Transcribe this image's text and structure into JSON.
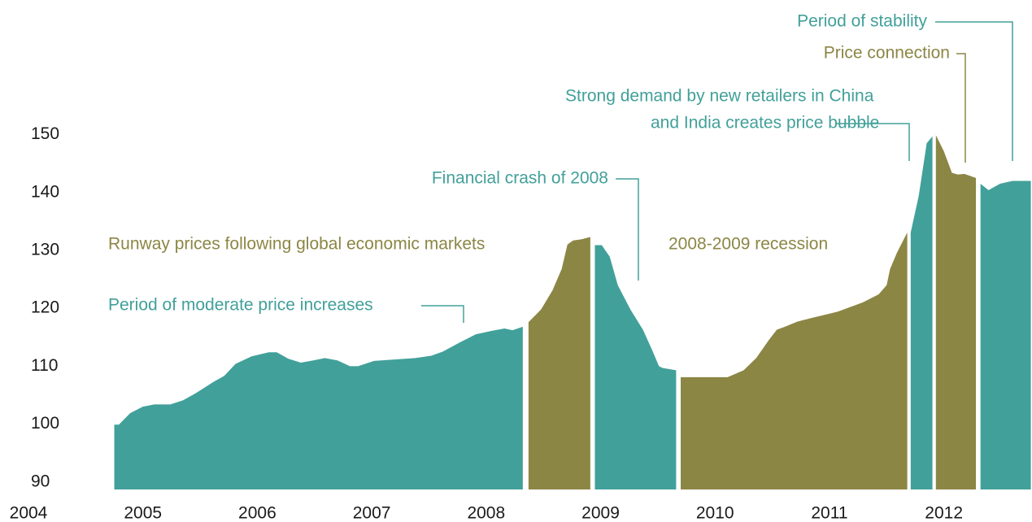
{
  "chart_data": {
    "type": "area",
    "xlim": [
      2004,
      2012.77
    ],
    "ylim": [
      88.7,
      150
    ],
    "xticks": [
      2004,
      2005,
      2006,
      2007,
      2008,
      2009,
      2010,
      2011,
      2012
    ],
    "yticks": [
      90,
      100,
      110,
      120,
      130,
      140,
      150
    ],
    "series": [
      {
        "color": "#42a09a",
        "x": [
          2004.75,
          2004.79,
          2004.89,
          2005.0,
          2005.1,
          2005.24,
          2005.35,
          2005.46,
          2005.61,
          2005.71,
          2005.81,
          2005.95,
          2006.1,
          2006.17,
          2006.27,
          2006.38,
          2006.49,
          2006.59,
          2006.7,
          2006.81,
          2006.88,
          2007.02,
          2007.16,
          2007.38,
          2007.52,
          2007.62,
          2007.77,
          2007.91,
          2008.05,
          2008.16,
          2008.23,
          2008.32
        ],
        "values": [
          99.9,
          99.9,
          101.9,
          103.0,
          103.4,
          103.4,
          104.1,
          105.3,
          107.2,
          108.3,
          110.4,
          111.7,
          112.4,
          112.4,
          111.3,
          110.6,
          111.0,
          111.4,
          111.0,
          110.0,
          110.0,
          110.9,
          111.1,
          111.4,
          111.8,
          112.5,
          114.1,
          115.5,
          116.1,
          116.5,
          116.2,
          116.8
        ]
      },
      {
        "color": "#8c8645",
        "x": [
          2008.37,
          2008.48,
          2008.58,
          2008.66,
          2008.71,
          2008.76,
          2008.83,
          2008.91
        ],
        "values": [
          117.6,
          119.8,
          123.1,
          126.8,
          131.0,
          131.7,
          131.9,
          132.3
        ]
      },
      {
        "color": "#42a09a",
        "x": [
          2008.95,
          2009.01,
          2009.08,
          2009.15,
          2009.26,
          2009.37,
          2009.45,
          2009.51,
          2009.54,
          2009.66
        ],
        "values": [
          130.9,
          130.9,
          128.9,
          124.0,
          119.8,
          116.3,
          112.8,
          110.0,
          109.7,
          109.3
        ]
      },
      {
        "color": "#8c8645",
        "x": [
          2009.7,
          2010.11,
          2010.25,
          2010.36,
          2010.47,
          2010.54,
          2010.61,
          2010.72,
          2010.86,
          2011.07,
          2011.29,
          2011.43,
          2011.5,
          2011.53,
          2011.59,
          2011.68
        ],
        "values": [
          108.1,
          108.1,
          109.3,
          111.4,
          114.5,
          116.3,
          116.8,
          117.7,
          118.4,
          119.4,
          121.0,
          122.4,
          124.0,
          126.8,
          129.6,
          133.1
        ]
      },
      {
        "color": "#42a09a",
        "x": [
          2011.71,
          2011.78,
          2011.85,
          2011.9
        ],
        "values": [
          133.1,
          139.4,
          148.5,
          149.7
        ]
      },
      {
        "color": "#8c8645",
        "x": [
          2011.93,
          2012.0,
          2012.07,
          2012.12,
          2012.18,
          2012.28
        ],
        "values": [
          149.9,
          147.1,
          143.4,
          143.1,
          143.2,
          142.5
        ]
      },
      {
        "color": "#42a09a",
        "x": [
          2012.32,
          2012.39,
          2012.49,
          2012.6,
          2012.76
        ],
        "values": [
          141.5,
          140.4,
          141.5,
          142.0,
          142.0
        ]
      }
    ],
    "annotations": [
      {
        "text": [
          "Period of stability"
        ],
        "color": "#42a09a"
      },
      {
        "text": [
          "Price connection"
        ],
        "color": "#8c8645"
      },
      {
        "text": [
          "Strong demand by new retailers in China",
          "and India creates price bubble"
        ],
        "color": "#42a09a"
      },
      {
        "text": [
          "Financial crash of 2008"
        ],
        "color": "#42a09a"
      },
      {
        "text": [
          "Runway prices following global economic markets"
        ],
        "color": "#8c8645"
      },
      {
        "text": [
          "2008-2009 recession"
        ],
        "color": "#8c8645"
      },
      {
        "text": [
          "Period of moderate price increases"
        ],
        "color": "#42a09a"
      }
    ]
  }
}
